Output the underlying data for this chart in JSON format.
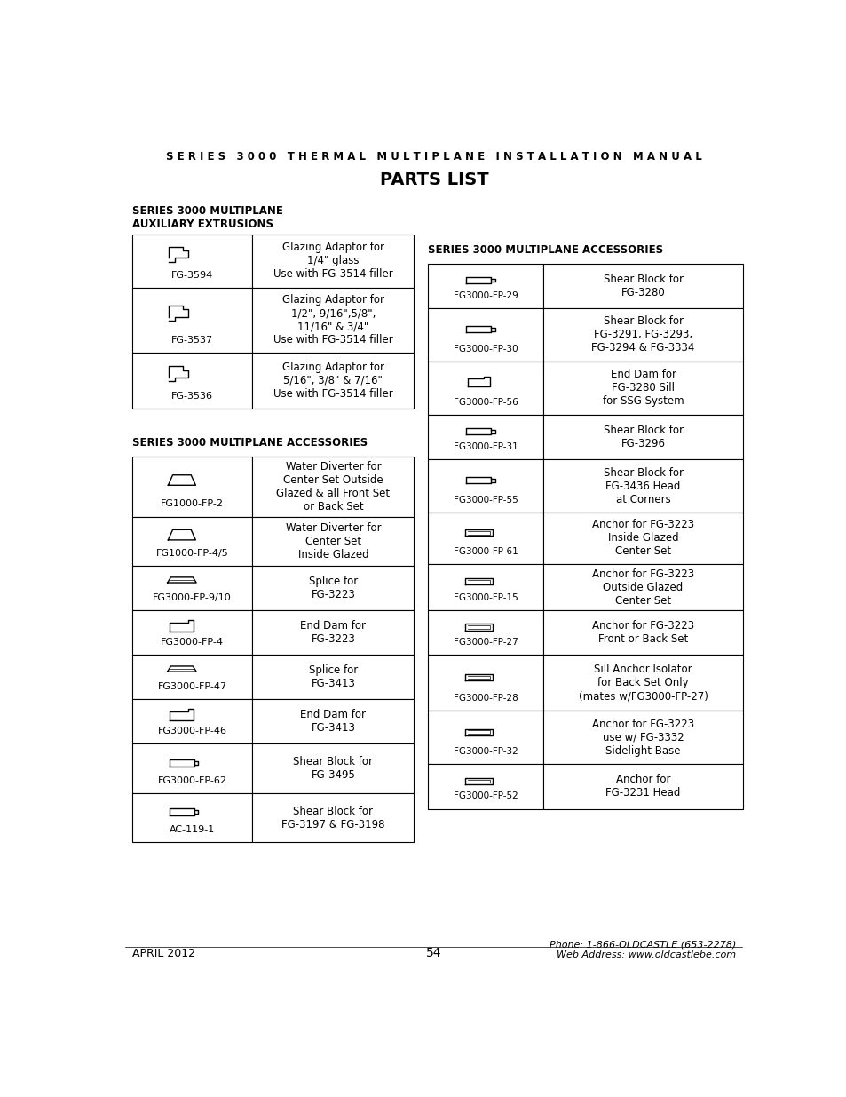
{
  "page_title": "S E R I E S   3 0 0 0   T H E R M A L   M U L T I P L A N E   I N S T A L L A T I O N   M A N U A L",
  "parts_title": "PARTS LIST",
  "section1_title": "SERIES 3000 MULTIPLANE\nAUXILIARY EXTRUSIONS",
  "section2_title": "SERIES 3000 MULTIPLANE ACCESSORIES",
  "section3_title": "SERIES 3000 MULTIPLANE ACCESSORIES",
  "left_rows": [
    {
      "part": "FG-3594",
      "desc": "Glazing Adaptor for\n1/4\" glass\nUse with FG-3514 filler"
    },
    {
      "part": "FG-3537",
      "desc": "Glazing Adaptor for\n1/2\", 9/16\",5/8\",\n11/16\" & 3/4\"\nUse with FG-3514 filler"
    },
    {
      "part": "FG-3536",
      "desc": "Glazing Adaptor for\n5/16\", 3/8\" & 7/16\"\nUse with FG-3514 filler"
    }
  ],
  "left_acc_rows": [
    {
      "part": "FG1000-FP-2",
      "desc": "Water Diverter for\nCenter Set Outside\nGlazed & all Front Set\nor Back Set"
    },
    {
      "part": "FG1000-FP-4/5",
      "desc": "Water Diverter for\nCenter Set\nInside Glazed"
    },
    {
      "part": "FG3000-FP-9/10",
      "desc": "Splice for\nFG-3223"
    },
    {
      "part": "FG3000-FP-4",
      "desc": "End Dam for\nFG-3223"
    },
    {
      "part": "FG3000-FP-47",
      "desc": "Splice for\nFG-3413"
    },
    {
      "part": "FG3000-FP-46",
      "desc": "End Dam for\nFG-3413"
    },
    {
      "part": "FG3000-FP-62",
      "desc": "Shear Block for\nFG-3495"
    },
    {
      "part": "AC-119-1",
      "desc": "Shear Block for\nFG-3197 & FG-3198"
    }
  ],
  "right_rows": [
    {
      "part": "FG3000-FP-29",
      "desc": "Shear Block for\nFG-3280"
    },
    {
      "part": "FG3000-FP-30",
      "desc": "Shear Block for\nFG-3291, FG-3293,\nFG-3294 & FG-3334"
    },
    {
      "part": "FG3000-FP-56",
      "desc": "End Dam for\nFG-3280 Sill\nfor SSG System"
    },
    {
      "part": "FG3000-FP-31",
      "desc": "Shear Block for\nFG-3296"
    },
    {
      "part": "FG3000-FP-55",
      "desc": "Shear Block for\nFG-3436 Head\nat Corners"
    },
    {
      "part": "FG3000-FP-61",
      "desc": "Anchor for FG-3223\nInside Glazed\nCenter Set"
    },
    {
      "part": "FG3000-FP-15",
      "desc": "Anchor for FG-3223\nOutside Glazed\nCenter Set"
    },
    {
      "part": "FG3000-FP-27",
      "desc": "Anchor for FG-3223\nFront or Back Set"
    },
    {
      "part": "FG3000-FP-28",
      "desc": "Sill Anchor Isolator\nfor Back Set Only\n(mates w/FG3000-FP-27)"
    },
    {
      "part": "FG3000-FP-32",
      "desc": "Anchor for FG-3223\nuse w/ FG-3332\nSidelight Base"
    },
    {
      "part": "FG3000-FP-52",
      "desc": "Anchor for\nFG-3231 Head"
    }
  ],
  "footer_left": "APRIL 2012",
  "footer_center": "54",
  "footer_right": "Phone: 1-866-OLDCASTLE (653-2278)\nWeb Address: www.oldcastlebe.com",
  "bg_color": "#ffffff",
  "text_color": "#000000",
  "border_color": "#000000"
}
